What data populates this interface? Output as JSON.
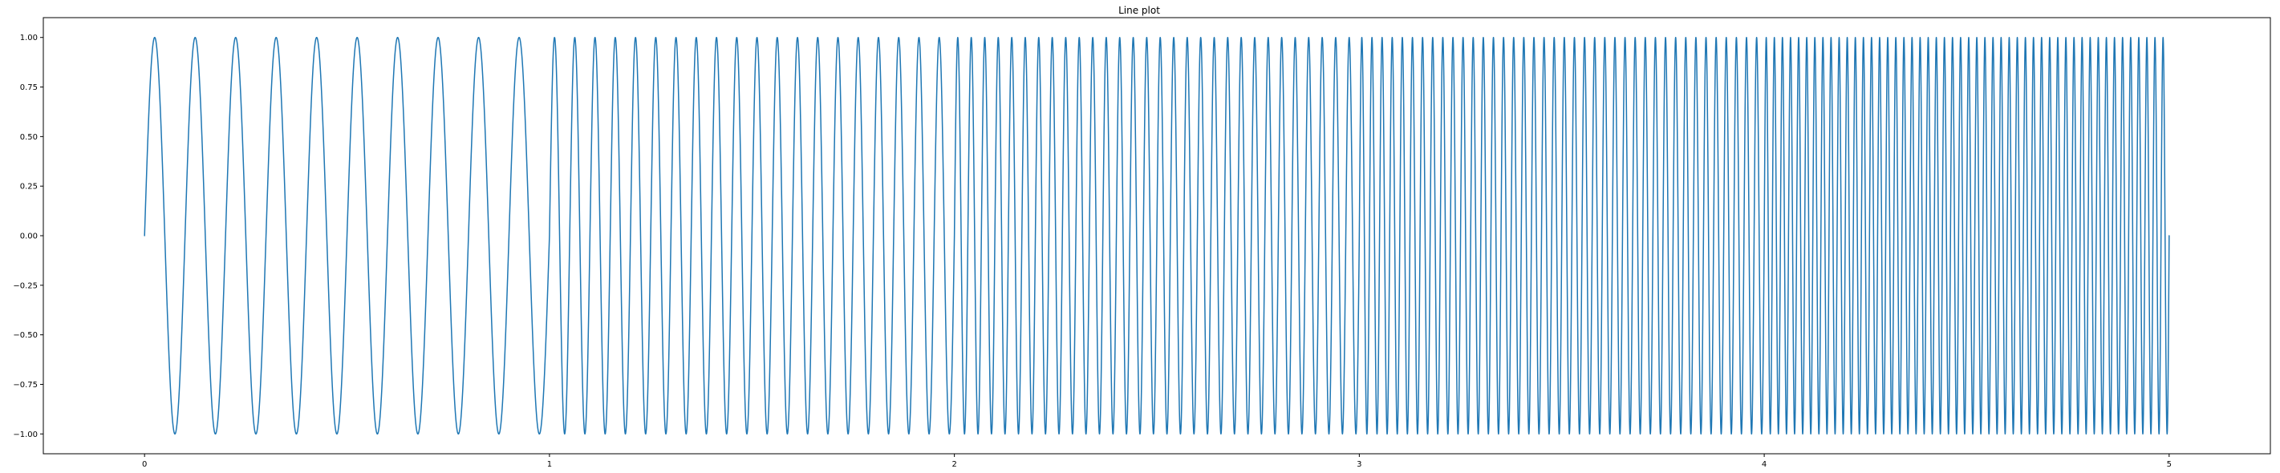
{
  "chart_data": {
    "type": "line",
    "title": "Line plot",
    "xlabel": "",
    "ylabel": "",
    "xlim": [
      -0.25,
      5.25
    ],
    "ylim": [
      -1.1,
      1.1
    ],
    "x_ticks": [
      0,
      1,
      2,
      3,
      4,
      5
    ],
    "x_tick_labels": [
      "0",
      "1",
      "2",
      "3",
      "4",
      "5"
    ],
    "y_ticks": [
      -1.0,
      -0.75,
      -0.5,
      -0.25,
      0.0,
      0.25,
      0.5,
      0.75,
      1.0
    ],
    "y_tick_labels": [
      "−1.00",
      "−0.75",
      "−0.50",
      "−0.25",
      "0.00",
      "0.25",
      "0.50",
      "0.75",
      "1.00"
    ],
    "grid": false,
    "legend": "none",
    "series": [
      {
        "function": "sin(2*pi*f(x)*x)",
        "x_range": [
          0,
          5
        ],
        "segments": [
          {
            "x_start": 0,
            "x_end": 1,
            "cycles_per_unit": 10
          },
          {
            "x_start": 1,
            "x_end": 2,
            "cycles_per_unit": 20
          },
          {
            "x_start": 2,
            "x_end": 3,
            "cycles_per_unit": 30
          },
          {
            "x_start": 3,
            "x_end": 4,
            "cycles_per_unit": 40
          },
          {
            "x_start": 4,
            "x_end": 5,
            "cycles_per_unit": 50
          }
        ],
        "color": "#1f77b4"
      }
    ]
  }
}
